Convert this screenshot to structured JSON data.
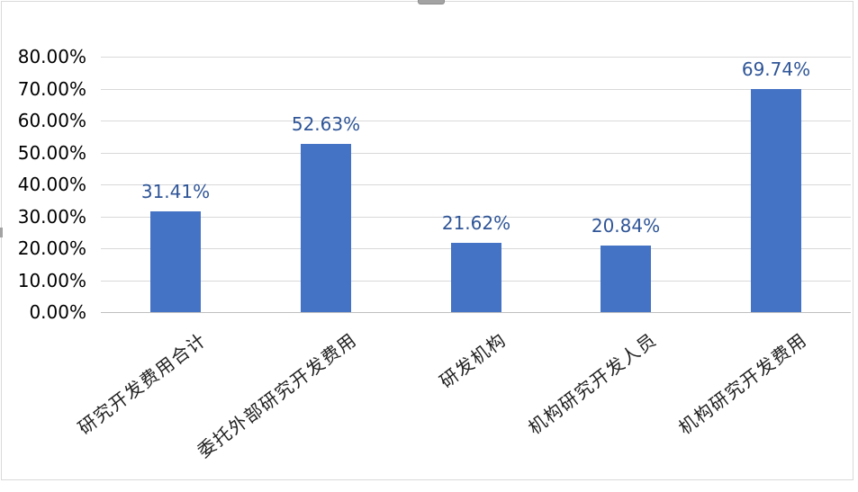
{
  "chart_data": {
    "type": "bar",
    "title": "",
    "categories": [
      "研究开发费用合计",
      "委托外部研究开发费用",
      "研发机构",
      "机构研究开发人员",
      "机构研究开发费用"
    ],
    "values": [
      31.41,
      52.63,
      21.62,
      20.84,
      69.74
    ],
    "data_labels": [
      "31.41%",
      "52.63%",
      "21.62%",
      "20.84%",
      "69.74%"
    ],
    "ytick_labels": [
      "0.00%",
      "10.00%",
      "20.00%",
      "30.00%",
      "40.00%",
      "50.00%",
      "60.00%",
      "70.00%",
      "80.00%"
    ],
    "ytick_values": [
      0,
      10,
      20,
      30,
      40,
      50,
      60,
      70,
      80
    ],
    "xlabel": "",
    "ylabel": "",
    "ylim": [
      0,
      80
    ],
    "grid": true,
    "legend_position": "none",
    "x_label_rotation_deg": -37
  },
  "colors": {
    "bar_fill": "#4472C4",
    "data_label_text": "#2F5597",
    "ytick_text": "#000000",
    "xtick_text": "#1F1F1F",
    "gridline": "#D9D9D9",
    "axis_line": "#BFBFBF",
    "chart_border": "#D9D9D9",
    "selection_handle": "#A3A3A3"
  }
}
